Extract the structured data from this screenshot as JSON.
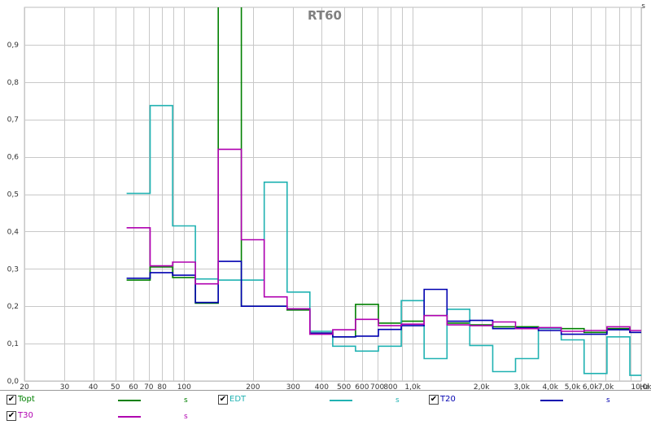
{
  "chart_data": {
    "type": "line",
    "title": "RT60",
    "x_scale": "log",
    "xlim": [
      20,
      10000
    ],
    "ylim": [
      0,
      1.0
    ],
    "grid": true,
    "y_unit": "s",
    "x_unit": "Hz",
    "y_ticks": [
      "0,0",
      "0,1",
      "0,2",
      "0,3",
      "0,4",
      "0,5",
      "0,6",
      "0,7",
      "0,8",
      "0,9"
    ],
    "x_ticks": [
      {
        "value": 20,
        "label": "20"
      },
      {
        "value": 30,
        "label": "30"
      },
      {
        "value": 40,
        "label": "40"
      },
      {
        "value": 50,
        "label": "50"
      },
      {
        "value": 60,
        "label": "60"
      },
      {
        "value": 70,
        "label": "70"
      },
      {
        "value": 80,
        "label": "80"
      },
      {
        "value": 100,
        "label": "100"
      },
      {
        "value": 200,
        "label": "200"
      },
      {
        "value": 300,
        "label": "300"
      },
      {
        "value": 400,
        "label": "400"
      },
      {
        "value": 500,
        "label": "500"
      },
      {
        "value": 600,
        "label": "600"
      },
      {
        "value": 700,
        "label": "700"
      },
      {
        "value": 800,
        "label": "800"
      },
      {
        "value": 1000,
        "label": "1,0k"
      },
      {
        "value": 2000,
        "label": "2,0k"
      },
      {
        "value": 3000,
        "label": "3,0k"
      },
      {
        "value": 4000,
        "label": "4,0k"
      },
      {
        "value": 5000,
        "label": "5,0k"
      },
      {
        "value": 6000,
        "label": "6,0k"
      },
      {
        "value": 7000,
        "label": "7,0k"
      },
      {
        "value": 10000,
        "label": "10,0k"
      }
    ],
    "x_extra_label": "Hz",
    "y_extra_label": "s",
    "band_edges": [
      56,
      71,
      89,
      112,
      141,
      178,
      224,
      282,
      355,
      447,
      562,
      708,
      891,
      1122,
      1413,
      1778,
      2239,
      2818,
      3548,
      4467,
      5623,
      7079,
      8913,
      11220
    ],
    "series": [
      {
        "name": "Topt",
        "color": "#008000",
        "values": [
          0.27,
          0.305,
          0.277,
          0.208,
          1.2,
          0.2,
          0.2,
          0.19,
          0.128,
          0.118,
          0.205,
          0.155,
          0.16,
          0.175,
          0.155,
          0.15,
          0.145,
          0.145,
          0.14,
          0.14,
          0.13,
          0.14,
          0.13
        ]
      },
      {
        "name": "EDT",
        "color": "#20B2B2",
        "values": [
          0.502,
          0.737,
          0.415,
          0.273,
          0.27,
          0.27,
          0.532,
          0.238,
          0.133,
          0.093,
          0.08,
          0.093,
          0.215,
          0.06,
          0.192,
          0.095,
          0.025,
          0.06,
          0.14,
          0.11,
          0.02,
          0.118,
          0.015
        ]
      },
      {
        "name": "T20",
        "color": "#0000B0",
        "values": [
          0.275,
          0.29,
          0.283,
          0.21,
          0.32,
          0.2,
          0.2,
          0.193,
          0.128,
          0.118,
          0.12,
          0.138,
          0.148,
          0.245,
          0.16,
          0.162,
          0.14,
          0.142,
          0.135,
          0.125,
          0.125,
          0.137,
          0.13
        ]
      },
      {
        "name": "T30",
        "color": "#B000B0",
        "values": [
          0.41,
          0.308,
          0.318,
          0.26,
          0.62,
          0.378,
          0.225,
          0.193,
          0.125,
          0.137,
          0.165,
          0.148,
          0.152,
          0.175,
          0.15,
          0.148,
          0.158,
          0.14,
          0.143,
          0.133,
          0.135,
          0.145,
          0.135
        ]
      }
    ]
  },
  "legend": {
    "items": [
      {
        "label": "Topt",
        "color": "#008000",
        "checked": true,
        "unit": "s"
      },
      {
        "label": "EDT",
        "color": "#20B2B2",
        "checked": true,
        "unit": "s"
      },
      {
        "label": "T20",
        "color": "#0000B0",
        "checked": true,
        "unit": "s"
      },
      {
        "label": "T30",
        "color": "#B000B0",
        "checked": true,
        "unit": "s"
      }
    ]
  }
}
